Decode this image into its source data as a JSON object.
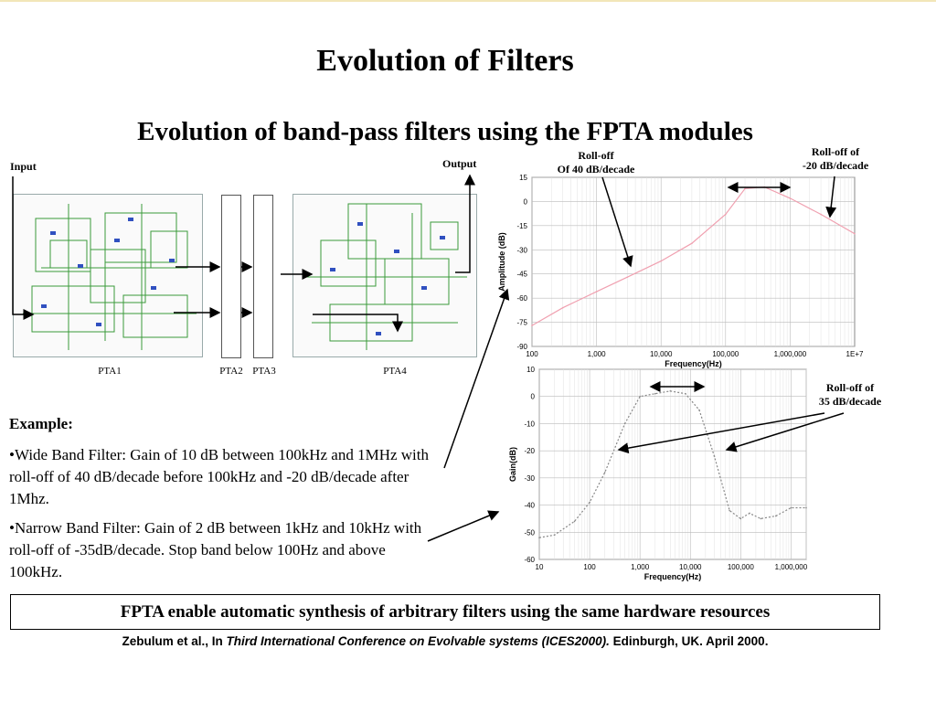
{
  "title": "Evolution of Filters",
  "subtitle": "Evolution of band-pass filters using the FPTA modules",
  "labels": {
    "input": "Input",
    "output": "Output",
    "pta1": "PTA1",
    "pta2": "PTA2",
    "pta3": "PTA3",
    "pta4": "PTA4"
  },
  "annotations": {
    "rolloff40_line1": "Roll-off",
    "rolloff40_line2": "Of 40 dB/decade",
    "rolloff20_line1": "Roll-off of",
    "rolloff20_line2": "-20 dB/decade",
    "rolloff35_line1": "Roll-off of",
    "rolloff35_line2": "35 dB/decade"
  },
  "example": {
    "heading": "Example:",
    "bullet1": "•Wide Band Filter: Gain of 10 dB between 100kHz and 1MHz with roll-off  of 40 dB/decade before 100kHz and -20 dB/decade after 1Mhz.",
    "bullet2": "•Narrow Band Filter: Gain of 2 dB between 1kHz and 10kHz with roll-off of -35dB/decade. Stop band below 100Hz and above 100kHz."
  },
  "footer_box": "FPTA enable automatic synthesis of arbitrary filters using the same hardware resources",
  "citation": {
    "prefix": "Zebulum et al., In ",
    "venue": "Third International Conference on Evolvable systems (ICES2000).",
    "suffix": " Edinburgh, UK. April 2000."
  },
  "colors": {
    "wide_curve": "#f0a0b0",
    "narrow_curve": "#888888",
    "circuit_wire": "#3a9a3a",
    "circuit_component": "#3050c0"
  },
  "chart_data": [
    {
      "type": "line",
      "xscale": "log",
      "xlabel": "Frequency(Hz)",
      "ylabel": "Amplitude (dB)",
      "xlim": [
        100,
        10000000
      ],
      "ylim": [
        -90,
        15
      ],
      "x_tick_labels": [
        "100",
        "1,000",
        "10,000",
        "100,000",
        "1,000,000",
        "1E+7"
      ],
      "y_tick_labels": [
        "15",
        "0",
        "-15",
        "-30",
        "-45",
        "-60",
        "-75",
        "-90"
      ],
      "y_ticks": [
        15,
        0,
        -15,
        -30,
        -45,
        -60,
        -75,
        -90
      ],
      "grid": true,
      "series": [
        {
          "x": [
            100,
            300,
            1000,
            3000,
            10000,
            30000,
            100000,
            200000,
            400000,
            1000000,
            3000000,
            10000000
          ],
          "values": [
            -77,
            -66,
            -56,
            -47,
            -37,
            -26,
            -8,
            8,
            9,
            2,
            -8,
            -20
          ]
        }
      ]
    },
    {
      "type": "line",
      "xscale": "log",
      "xlabel": "Frequency(Hz)",
      "ylabel": "Gain(dB)",
      "xlim": [
        10,
        2000000
      ],
      "ylim": [
        -60,
        10
      ],
      "x_tick_labels": [
        "10",
        "100",
        "1,000",
        "10,000",
        "100,000",
        "1,000,000"
      ],
      "y_tick_labels": [
        "10",
        "0",
        "-10",
        "-20",
        "-30",
        "-40",
        "-50",
        "-60"
      ],
      "y_ticks": [
        10,
        0,
        -10,
        -20,
        -30,
        -40,
        -50,
        -60
      ],
      "grid": true,
      "series": [
        {
          "x": [
            10,
            20,
            50,
            100,
            200,
            500,
            1000,
            2000,
            4000,
            8000,
            15000,
            30000,
            60000,
            100000,
            150000,
            250000,
            500000,
            1000000,
            2000000
          ],
          "values": [
            -52,
            -51,
            -46,
            -39,
            -28,
            -10,
            0,
            1,
            2,
            1,
            -5,
            -22,
            -42,
            -45,
            -43,
            -45,
            -44,
            -41,
            -41
          ]
        }
      ]
    }
  ]
}
